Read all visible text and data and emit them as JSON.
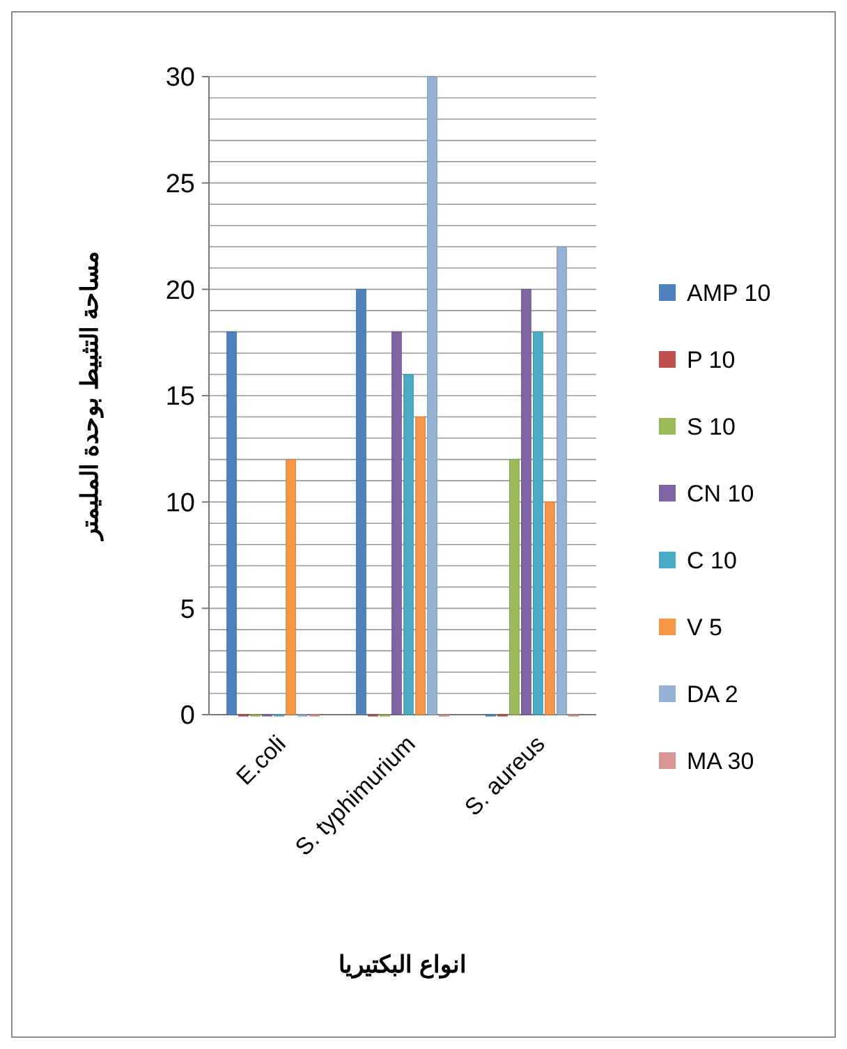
{
  "chart_data": {
    "type": "bar",
    "xlabel": "انواع البكتيريا",
    "ylabel": "مساحة التثبيط بوحدة المليمتر",
    "categories": [
      "E.coli",
      "S. typhimurium",
      "S. aureus"
    ],
    "series": [
      {
        "name": "AMP 10",
        "color": "#4f81bd",
        "values": [
          18,
          20,
          0
        ]
      },
      {
        "name": "P 10",
        "color": "#c0504d",
        "values": [
          0,
          0,
          0
        ]
      },
      {
        "name": "S 10",
        "color": "#9bbb59",
        "values": [
          0,
          0,
          12
        ]
      },
      {
        "name": "CN 10",
        "color": "#8064a2",
        "values": [
          0,
          18,
          20
        ]
      },
      {
        "name": "C 10",
        "color": "#4bacc6",
        "values": [
          0,
          16,
          18
        ]
      },
      {
        "name": "V 5",
        "color": "#f79646",
        "values": [
          12,
          14,
          10
        ]
      },
      {
        "name": "DA 2",
        "color": "#95b3d7",
        "values": [
          0,
          30,
          22
        ]
      },
      {
        "name": "MA 30",
        "color": "#d99694",
        "values": [
          0,
          0,
          0
        ]
      }
    ],
    "ylim": [
      0,
      30
    ],
    "yticks": [
      0,
      {
        "value": 1,
        "label": null
      },
      {
        "value": 2,
        "label": null
      },
      {
        "value": 3,
        "label": null
      },
      {
        "value": 4,
        "label": null
      },
      5,
      {
        "value": 6,
        "label": null
      },
      {
        "value": 7,
        "label": null
      },
      {
        "value": 8,
        "label": null
      },
      {
        "value": 9,
        "label": null
      },
      10,
      {
        "value": 11,
        "label": null
      },
      {
        "value": 12,
        "label": null
      },
      {
        "value": 13,
        "label": null
      },
      {
        "value": 14,
        "label": null
      },
      15,
      {
        "value": 16,
        "label": null
      },
      {
        "value": 17,
        "label": null
      },
      {
        "value": 18,
        "label": null
      },
      {
        "value": 19,
        "label": null
      },
      20,
      {
        "value": 21,
        "label": null
      },
      {
        "value": 22,
        "label": null
      },
      {
        "value": 23,
        "label": null
      },
      {
        "value": 24,
        "label": null
      },
      25,
      {
        "value": 26,
        "label": null
      },
      {
        "value": 27,
        "label": null
      },
      {
        "value": 28,
        "label": null
      },
      {
        "value": 29,
        "label": null
      },
      30
    ],
    "grid": "y",
    "legend": "right"
  }
}
